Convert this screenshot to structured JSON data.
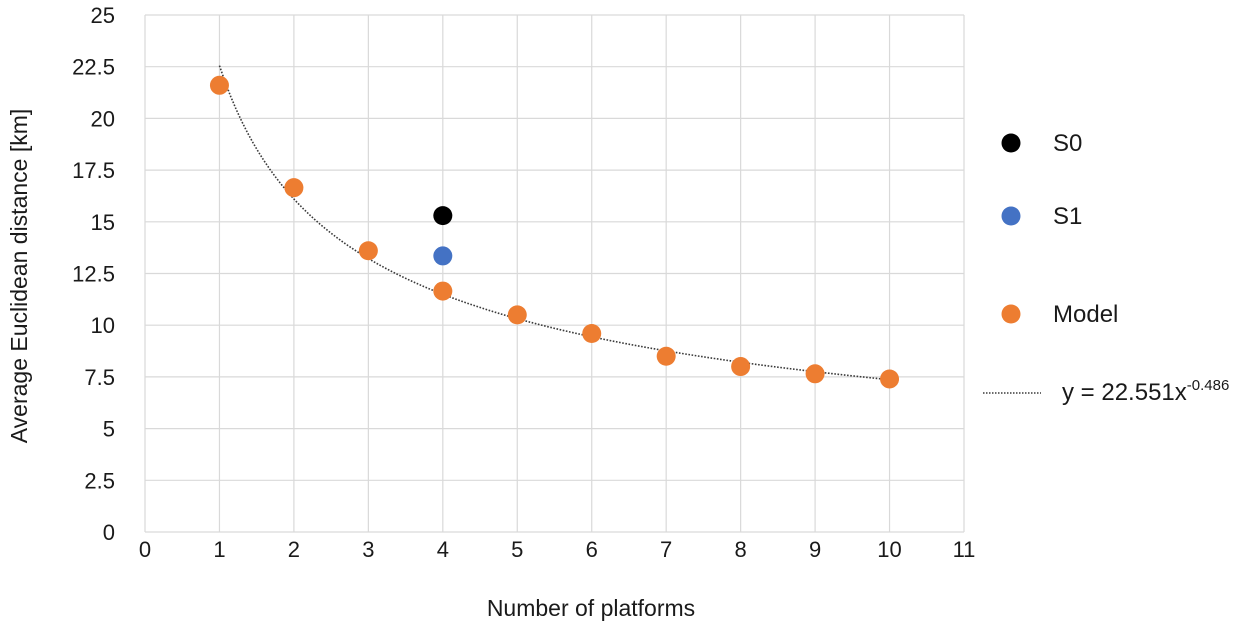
{
  "chart_data": {
    "type": "scatter",
    "title": "",
    "xlabel": "Number of platforms",
    "ylabel": "Average Euclidean distance [km]",
    "xlim": [
      0,
      11
    ],
    "ylim": [
      0,
      25
    ],
    "x_ticks": [
      "0",
      "1",
      "2",
      "3",
      "4",
      "5",
      "6",
      "7",
      "8",
      "9",
      "10",
      "11"
    ],
    "y_ticks": [
      "0",
      "2.5",
      "5",
      "7.5",
      "10",
      "12.5",
      "15",
      "17.5",
      "20",
      "22.5",
      "25"
    ],
    "grid": "vertical and horizontal",
    "legend_position": "right",
    "series": [
      {
        "name": "S0",
        "color": "#000000",
        "points": [
          [
            4,
            15.3
          ]
        ]
      },
      {
        "name": "S1",
        "color": "#4472C4",
        "points": [
          [
            4,
            13.35
          ]
        ]
      },
      {
        "name": "Model",
        "color": "#ED7D31",
        "points": [
          [
            1,
            21.6
          ],
          [
            2,
            16.65
          ],
          [
            3,
            13.6
          ],
          [
            4,
            11.65
          ],
          [
            5,
            10.5
          ],
          [
            6,
            9.6
          ],
          [
            7,
            8.5
          ],
          [
            8,
            8.0
          ],
          [
            9,
            7.65
          ],
          [
            10,
            7.4
          ]
        ]
      }
    ],
    "trendline": {
      "label_base": "y = 22.551x",
      "label_exp": "-0.486",
      "coef": 22.551,
      "exponent": -0.486,
      "x_range": [
        1,
        10
      ],
      "style": "dotted",
      "color": "#3a3a3a"
    }
  }
}
